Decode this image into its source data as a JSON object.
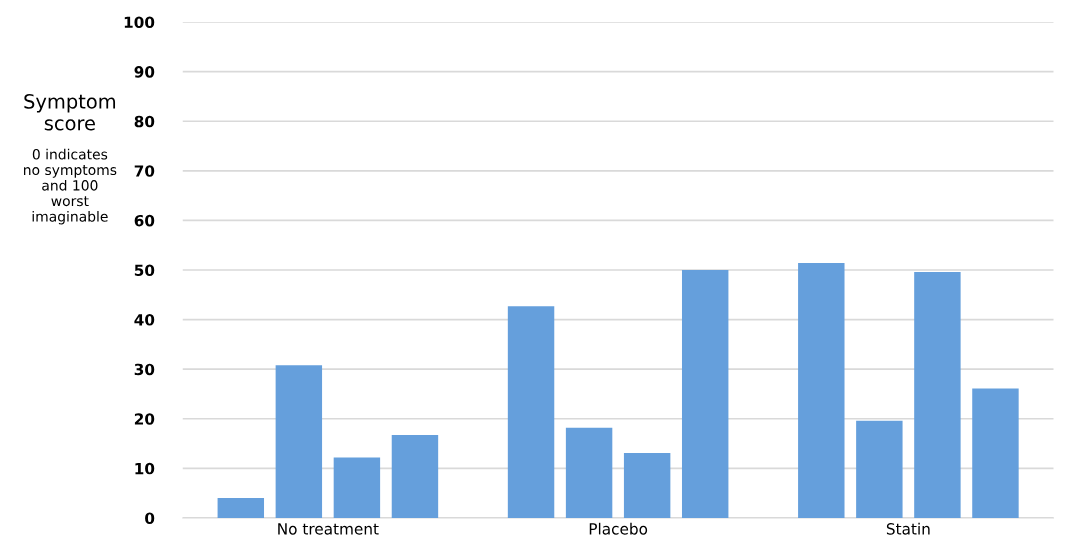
{
  "chart_data": {
    "type": "bar",
    "ylabel": "Symptom score",
    "annotations": [
      "0 indicates no symptoms and 100 worst imaginable"
    ],
    "categories": [
      "No treatment",
      "Placebo",
      "Statin"
    ],
    "series": [
      {
        "color": "#659fdc",
        "values": [
          4,
          42.7,
          51.4
        ]
      },
      {
        "color": "#659fdc",
        "values": [
          30.8,
          18.2,
          19.6
        ]
      },
      {
        "color": "#659fdc",
        "values": [
          12.2,
          13.1,
          49.6
        ]
      },
      {
        "color": "#659fdc",
        "values": [
          16.7,
          50,
          26.1
        ]
      }
    ],
    "ylim": [
      0,
      100
    ],
    "yticks": [
      0,
      10,
      20,
      30,
      40,
      50,
      60,
      70,
      80,
      90,
      100
    ],
    "grid": "y"
  }
}
